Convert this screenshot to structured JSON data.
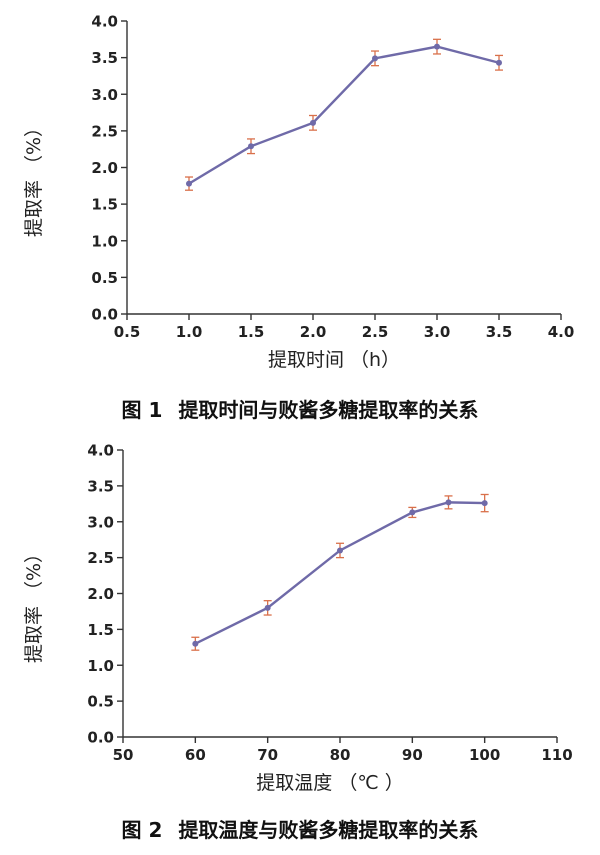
{
  "chart_data": [
    {
      "type": "line",
      "x": [
        1.0,
        1.5,
        2.0,
        2.5,
        3.0,
        3.5
      ],
      "series": [
        {
          "values": [
            1.78,
            2.29,
            2.61,
            3.49,
            3.65,
            3.43
          ],
          "errors": [
            0.09,
            0.1,
            0.1,
            0.1,
            0.1,
            0.1
          ]
        }
      ],
      "xlim": [
        0.5,
        4.0
      ],
      "ylim": [
        0.0,
        4.0
      ],
      "xticks": [
        0.5,
        1.0,
        1.5,
        2.0,
        2.5,
        3.0,
        3.5,
        4.0
      ],
      "yticks": [
        0.0,
        0.5,
        1.0,
        1.5,
        2.0,
        2.5,
        3.0,
        3.5,
        4.0
      ],
      "decimals": 1,
      "xlabel": "提取时间 （h）",
      "ylabel": "提取率 （%）",
      "caption_num": "图 1",
      "caption_text": "提取时间与败酱多糖提取率的关系",
      "line_color": "#6f6aa8",
      "error_color": "#d9704a",
      "grid": false
    },
    {
      "type": "line",
      "x": [
        60,
        70,
        80,
        90,
        95,
        100
      ],
      "series": [
        {
          "values": [
            1.3,
            1.8,
            2.6,
            3.13,
            3.27,
            3.26
          ],
          "errors": [
            0.09,
            0.1,
            0.1,
            0.07,
            0.09,
            0.12
          ]
        }
      ],
      "xlim": [
        50,
        110
      ],
      "ylim": [
        0.0,
        4.0
      ],
      "xticks": [
        50,
        60,
        70,
        80,
        90,
        100,
        110
      ],
      "yticks": [
        0.0,
        0.5,
        1.0,
        1.5,
        2.0,
        2.5,
        3.0,
        3.5,
        4.0
      ],
      "decimals": 0,
      "xlabel": "提取温度 （℃ ）",
      "ylabel": "提取率 （%）",
      "caption_num": "图 2",
      "caption_text": "提取温度与败酱多糖提取率的关系",
      "line_color": "#6f6aa8",
      "error_color": "#d9704a",
      "grid": false
    }
  ]
}
